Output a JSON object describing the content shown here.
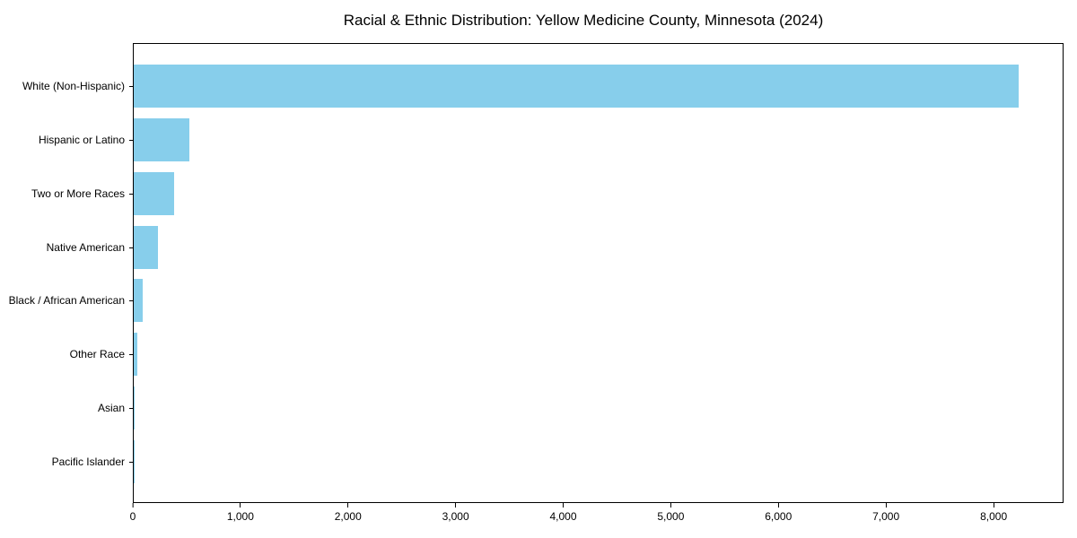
{
  "figure": {
    "background": "#ffffff"
  },
  "chart_data": {
    "type": "bar",
    "orientation": "horizontal",
    "title": "Racial & Ethnic Distribution: Yellow Medicine County, Minnesota (2024)",
    "categories": [
      "White (Non-Hispanic)",
      "Hispanic or Latino",
      "Two or More Races",
      "Native American",
      "Black / African American",
      "Other Race",
      "Asian",
      "Pacific Islander"
    ],
    "values": [
      8240,
      520,
      380,
      228,
      87,
      31,
      12,
      2
    ],
    "bar_color": "#87CEEB",
    "axis_color": "#000000",
    "text_color": "#000000",
    "xlabel": "",
    "ylabel": "",
    "xlim": [
      0,
      8650
    ],
    "x_ticks": [
      0,
      1000,
      2000,
      3000,
      4000,
      5000,
      6000,
      7000,
      8000
    ],
    "x_tick_labels": [
      "0",
      "1,000",
      "2,000",
      "3,000",
      "4,000",
      "5,000",
      "6,000",
      "7,000",
      "8,000"
    ],
    "grid": false,
    "legend_position": "none"
  }
}
